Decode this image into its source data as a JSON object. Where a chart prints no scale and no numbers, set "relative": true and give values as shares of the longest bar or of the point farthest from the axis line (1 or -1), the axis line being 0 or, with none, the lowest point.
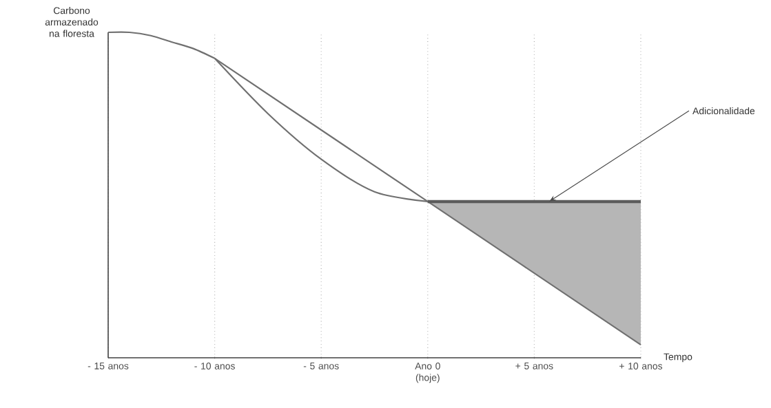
{
  "chart_data": {
    "type": "line",
    "relative": true,
    "ylabel": "Carbono armazenado na floresta",
    "xlabel": "Tempo",
    "xlim": [
      -15,
      10
    ],
    "xticks": [
      {
        "value": -15,
        "label": "- 15 anos"
      },
      {
        "value": -10,
        "label": "- 10 anos"
      },
      {
        "value": -5,
        "label": "- 5 anos"
      },
      {
        "value": 0,
        "label": "Ano 0 (hoje)"
      },
      {
        "value": 5,
        "label": "+ 5 anos"
      },
      {
        "value": 10,
        "label": "+ 10 anos"
      }
    ],
    "grid": "x",
    "tick_labels": "x",
    "marker": "none",
    "line_style": "solid",
    "annotations": [
      {
        "text": "Adicionalidade",
        "x": 5.7,
        "y": 0.48
      }
    ],
    "series": [
      {
        "color": "#707070",
        "x": [
          -15,
          -14,
          -13,
          -12,
          -11,
          -10
        ],
        "values": [
          1,
          1,
          0.99,
          0.97,
          0.95,
          0.92
        ]
      },
      {
        "color": "#707070",
        "x": [
          -10,
          0,
          10
        ],
        "values": [
          0.92,
          0.48,
          0.04
        ]
      },
      {
        "color": "#707070",
        "x": [
          -10,
          -7.5,
          -5,
          -2.5,
          0
        ],
        "values": [
          0.92,
          0.75,
          0.61,
          0.51,
          0.48
        ]
      },
      {
        "color": "#5c5c5c",
        "x": [
          0,
          5,
          10
        ],
        "values": [
          0.48,
          0.48,
          0.48
        ],
        "lower": [
          0.48,
          0.26,
          0.04
        ],
        "upper": [
          0.48,
          0.48,
          0.48
        ]
      }
    ]
  }
}
